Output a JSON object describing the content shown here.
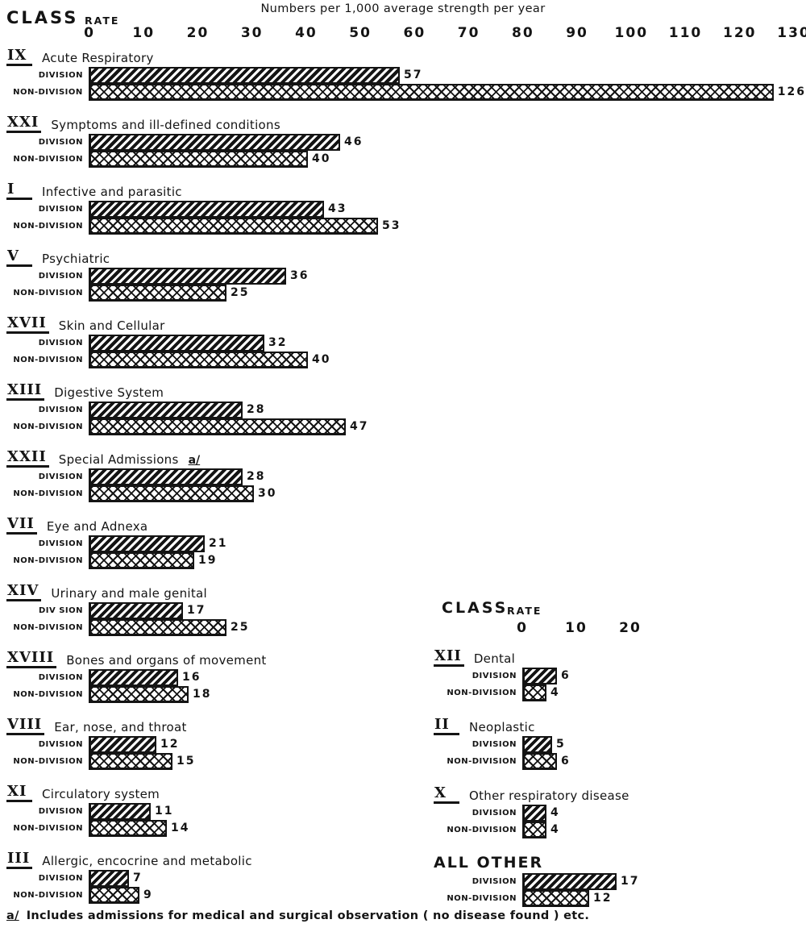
{
  "page": {
    "title": "Numbers per 1,000 average strength per year",
    "class_label": "CLASS",
    "rate_label": "RATE",
    "footnote_marker": "a/",
    "footnote_text": "Includes admissions for medical and surgical observation ( no disease found ) etc."
  },
  "colors": {
    "ink": "#141414",
    "paper": "#ffffff"
  },
  "legend": {
    "series_patterns": {
      "DIVISION": "diagonal-hatch",
      "NON-DIVISION": "crosshatch"
    }
  },
  "chart_data": [
    {
      "type": "bar",
      "orientation": "horizontal",
      "panel": "left",
      "xlabel": "Numbers per 1,000 average strength per year",
      "xlim": [
        0,
        130
      ],
      "xticks": [
        0,
        10,
        20,
        30,
        40,
        50,
        60,
        70,
        80,
        90,
        100,
        110,
        120,
        130
      ],
      "series_names": [
        "DIVISION",
        "NON-DIVISION"
      ],
      "series": [
        {
          "name": "DIVISION",
          "values": [
            57,
            46,
            43,
            36,
            32,
            28,
            28,
            21,
            17,
            16,
            12,
            11,
            7
          ]
        },
        {
          "name": "NON-DIVISION",
          "values": [
            126,
            40,
            53,
            25,
            40,
            47,
            30,
            19,
            25,
            18,
            15,
            14,
            9
          ]
        }
      ],
      "categories": [
        "IX Acute Respiratory",
        "XXI Symptoms and ill-defined conditions",
        "I Infective and parasitic",
        "V Psychiatric",
        "XVII Skin and Cellular",
        "XIII Digestive System",
        "XXII Special Admissions a/",
        "VII Eye and Adnexa",
        "XIV Urinary and male genital",
        "XVIII Bones and organs of movement",
        "VIII Ear, nose, and throat",
        "XI Circulatory system",
        "III Allergic, encocrine and metabolic"
      ],
      "groups": [
        {
          "roman": "IX",
          "name": "Acute Respiratory",
          "division": 57,
          "non_division": 126
        },
        {
          "roman": "XXI",
          "name": "Symptoms and ill-defined conditions",
          "division": 46,
          "non_division": 40
        },
        {
          "roman": "I",
          "name": "Infective and parasitic",
          "division": 43,
          "non_division": 53
        },
        {
          "roman": "V",
          "name": "Psychiatric",
          "division": 36,
          "non_division": 25
        },
        {
          "roman": "XVII",
          "name": "Skin and Cellular",
          "division": 32,
          "non_division": 40
        },
        {
          "roman": "XIII",
          "name": "Digestive System",
          "division": 28,
          "non_division": 47
        },
        {
          "roman": "XXII",
          "name": "Special Admissions",
          "suffix": "a/",
          "division": 28,
          "non_division": 30
        },
        {
          "roman": "VII",
          "name": "Eye and Adnexa",
          "division": 21,
          "non_division": 19
        },
        {
          "roman": "XIV",
          "name": "Urinary and male genital",
          "division_label": "DIV SION",
          "division": 17,
          "non_division": 25
        },
        {
          "roman": "XVIII",
          "name": "Bones and organs of movement",
          "division": 16,
          "non_division": 18
        },
        {
          "roman": "VIII",
          "name": "Ear, nose, and throat",
          "division": 12,
          "non_division": 15
        },
        {
          "roman": "XI",
          "name": "Circulatory system",
          "division": 11,
          "non_division": 14
        },
        {
          "roman": "III",
          "name": "Allergic, encocrine and metabolic",
          "division": 7,
          "non_division": 9
        }
      ]
    },
    {
      "type": "bar",
      "orientation": "horizontal",
      "panel": "right",
      "xlim": [
        0,
        25
      ],
      "xticks": [
        0,
        10,
        20
      ],
      "series_names": [
        "DIVISION",
        "NON-DIVISION"
      ],
      "series": [
        {
          "name": "DIVISION",
          "values": [
            6,
            5,
            4,
            17
          ]
        },
        {
          "name": "NON-DIVISION",
          "values": [
            4,
            6,
            4,
            12
          ]
        }
      ],
      "categories": [
        "XII Dental",
        "II Neoplastic",
        "X Other respiratory disease",
        "ALL OTHER"
      ],
      "groups": [
        {
          "roman": "XII",
          "name": "Dental",
          "division": 6,
          "non_division": 4
        },
        {
          "roman": "II",
          "name": "Neoplastic",
          "division": 5,
          "non_division": 6
        },
        {
          "roman": "X",
          "name": "Other respiratory disease",
          "division": 4,
          "non_division": 4
        },
        {
          "roman": "",
          "name": "ALL OTHER",
          "big": true,
          "division": 17,
          "non_division": 12
        }
      ]
    }
  ]
}
